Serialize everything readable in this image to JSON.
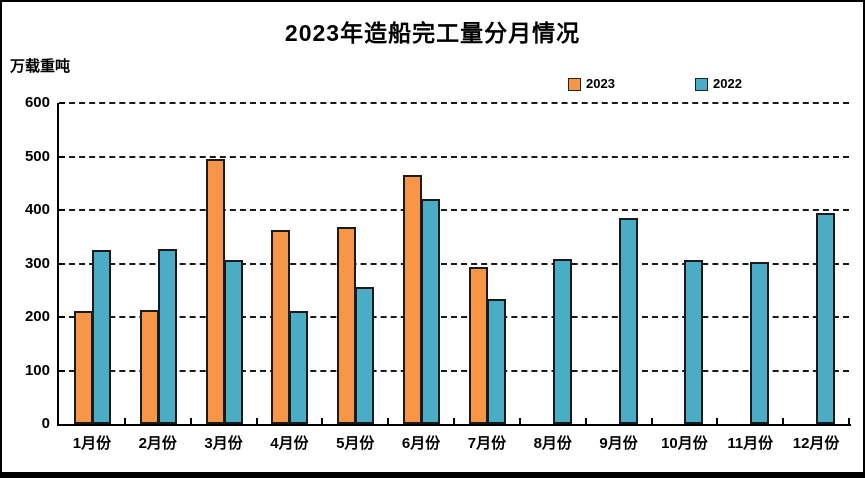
{
  "title": "2023年造船完工量分月情况",
  "y_unit_label": "万载重吨",
  "legend": {
    "items": [
      {
        "label": "2023",
        "color": "#F79646"
      },
      {
        "label": "2022",
        "color": "#4BACC6"
      }
    ]
  },
  "colors": {
    "series_2023": "#F79646",
    "series_2022": "#4BACC6",
    "bar_border": "#1a1a1a",
    "axis": "#000000",
    "gridline": "#1a1a1a",
    "text": "#000000"
  },
  "chart_data": {
    "type": "bar",
    "title": "2023年造船完工量分月情况",
    "ylabel": "万载重吨",
    "xlabel": "",
    "categories": [
      "1月份",
      "2月份",
      "3月份",
      "4月份",
      "5月份",
      "6月份",
      "7月份",
      "8月份",
      "9月份",
      "10月份",
      "11月份",
      "12月份"
    ],
    "series": [
      {
        "name": "2023",
        "color": "#F79646",
        "values": [
          211,
          213,
          495,
          363,
          368,
          465,
          294,
          null,
          null,
          null,
          null,
          null
        ]
      },
      {
        "name": "2022",
        "color": "#4BACC6",
        "values": [
          326,
          328,
          307,
          211,
          257,
          421,
          233,
          308,
          386,
          306,
          302,
          395
        ]
      }
    ],
    "ylim": [
      0,
      600
    ],
    "yticks": [
      0,
      100,
      200,
      300,
      400,
      500,
      600
    ],
    "grid": "dashed-horizontal",
    "legend_position": "top-right"
  }
}
